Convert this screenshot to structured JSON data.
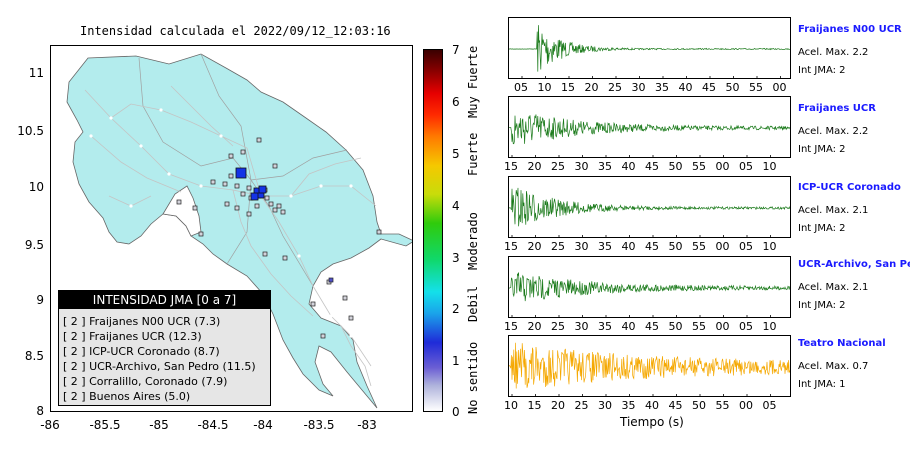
{
  "map": {
    "title": "Intensidad calculada el 2022/09/12_12:03:16",
    "y_ticks": [
      "11",
      "10.5",
      "10",
      "9.5",
      "9",
      "8.5",
      "8"
    ],
    "x_ticks": [
      "-86",
      "-85.5",
      "-85",
      "-84.5",
      "-84",
      "-83.5",
      "-83"
    ],
    "land_color": "#b3eced",
    "station_color": "#1433e6"
  },
  "legend": {
    "title": "INTENSIDAD JMA [0 a 7]",
    "items": [
      "[ 2 ]  Fraijanes N00 UCR (7.3)",
      "[ 2 ]  Fraijanes UCR (12.3)",
      "[ 2 ]  ICP-UCR Coronado (8.7)",
      "[ 2 ]  UCR-Archivo, San Pedro (11.5)",
      "[ 2 ]  Corralillo, Coronado (7.9)",
      "[ 2 ]  Buenos Aires (5.0)"
    ]
  },
  "colorbar": {
    "ticks": [
      "7",
      "6",
      "5",
      "4",
      "3",
      "2",
      "1",
      "0"
    ],
    "labels": [
      "Muy Fuerte",
      "Fuerte",
      "Moderado",
      "Debil",
      "No sentido"
    ]
  },
  "waveforms": {
    "xlabel": "Tiempo (s)",
    "panels": [
      {
        "station": "Fraijanes N00 UCR",
        "accel": "Acel. Max. 2.2",
        "int": "Int JMA: 2",
        "color": "#1a7a1a",
        "ticks": [
          "05",
          "10",
          "15",
          "20",
          "25",
          "30",
          "35",
          "40",
          "45",
          "50",
          "55",
          "00"
        ]
      },
      {
        "station": "Fraijanes UCR",
        "accel": "Acel. Max. 2.2",
        "int": "Int JMA: 2",
        "color": "#1a7a1a",
        "ticks": [
          "15",
          "20",
          "25",
          "30",
          "35",
          "40",
          "45",
          "50",
          "55",
          "00",
          "05",
          "10"
        ]
      },
      {
        "station": "ICP-UCR Coronado",
        "accel": "Acel. Max. 2.1",
        "int": "Int JMA: 2",
        "color": "#1a7a1a",
        "ticks": [
          "15",
          "20",
          "25",
          "30",
          "35",
          "40",
          "45",
          "50",
          "55",
          "00",
          "05",
          "10"
        ]
      },
      {
        "station": "UCR-Archivo, San Pedro",
        "accel": "Acel. Max. 2.1",
        "int": "Int JMA: 2",
        "color": "#1a7a1a",
        "ticks": [
          "15",
          "20",
          "25",
          "30",
          "35",
          "40",
          "45",
          "50",
          "55",
          "00",
          "05",
          "10"
        ]
      },
      {
        "station": "Teatro Nacional",
        "accel": "Acel. Max. 0.7",
        "int": "Int JMA: 1",
        "color": "#f5a800",
        "ticks": [
          "10",
          "15",
          "20",
          "25",
          "30",
          "35",
          "40",
          "45",
          "50",
          "55",
          "00",
          "05"
        ]
      }
    ]
  }
}
